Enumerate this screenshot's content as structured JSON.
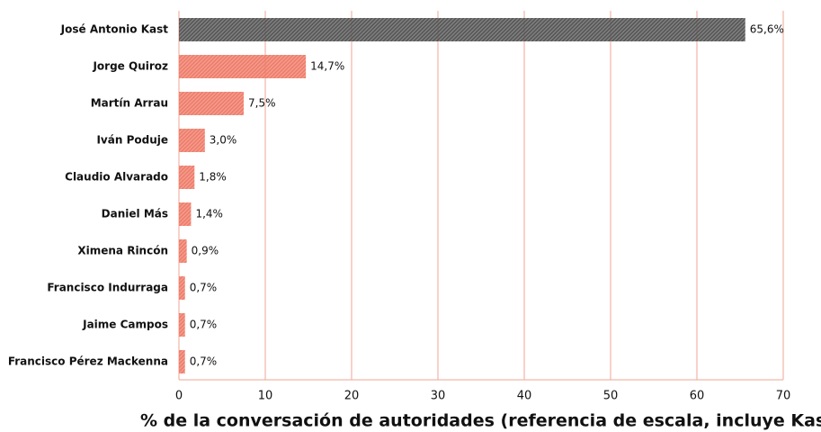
{
  "chart_data": {
    "type": "barh",
    "categories": [
      "José Antonio Kast",
      "Jorge Quiroz",
      "Martín Arrau",
      "Iván Poduje",
      "Claudio Alvarado",
      "Daniel Más",
      "Ximena Rincón",
      "Francisco Indurraga",
      "Jaime Campos",
      "Francisco Pérez Mackenna"
    ],
    "values": [
      65.6,
      14.7,
      7.5,
      3.0,
      1.8,
      1.4,
      0.9,
      0.7,
      0.7,
      0.7
    ],
    "value_labels": [
      "65,6%",
      "14,7%",
      "7,5%",
      "3,0%",
      "1,8%",
      "1,4%",
      "0,9%",
      "0,7%",
      "0,7%",
      "0,7%"
    ],
    "colors": [
      "#555555",
      "#ee7b68",
      "#ee7b68",
      "#ee7b68",
      "#ee7b68",
      "#ee7b68",
      "#ee7b68",
      "#ee7b68",
      "#ee7b68",
      "#ee7b68"
    ],
    "xlabel": "% de la conversación de autoridades (referencia de escala, incluye Kast)",
    "xlim": [
      0,
      70
    ],
    "xticks": [
      0,
      10,
      20,
      30,
      40,
      50,
      60,
      70
    ],
    "grid": true
  }
}
